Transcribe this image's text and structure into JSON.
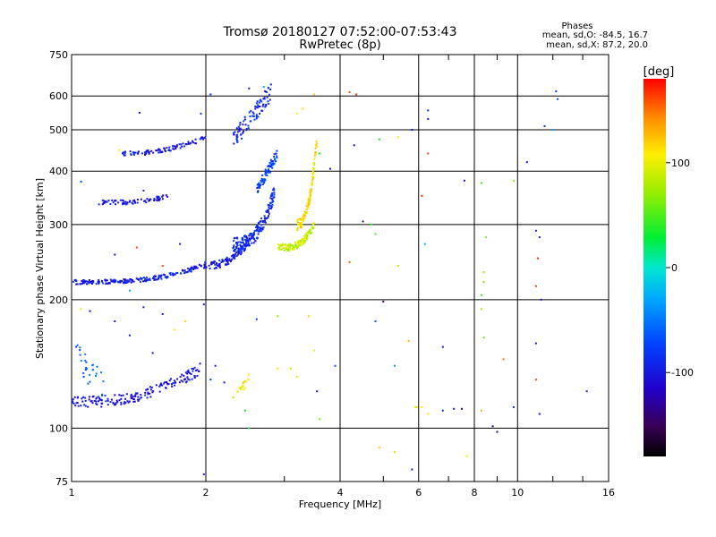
{
  "chart_data": {
    "type": "scatter",
    "title": "Tromsø 20180127 07:52:00-07:53:43",
    "subtitle": "RwPretec (8p)",
    "xlabel": "Frequency [MHz]",
    "ylabel": "Stationary phase Virtual Height [km]",
    "xscale": "log",
    "yscale": "log",
    "xlim": [
      1,
      16
    ],
    "ylim": [
      75,
      750
    ],
    "x_ticks": [
      1,
      2,
      4,
      6,
      8,
      10,
      16
    ],
    "x_tick_labels": [
      "1",
      "2",
      "4",
      "6",
      "8",
      "10",
      "16"
    ],
    "x_minor_ticks": [
      3,
      5,
      7,
      9,
      12,
      14
    ],
    "y_ticks": [
      75,
      100,
      200,
      300,
      400,
      500,
      600,
      750
    ],
    "y_tick_labels": [
      "75",
      "100",
      "200",
      "300",
      "400",
      "500",
      "600",
      "750"
    ],
    "grid": true,
    "phase_info": {
      "header": "Phases",
      "line1": "mean, sd,O: -84.5, 16.7",
      "line2": "mean, sd,X:  87.2, 20.0"
    },
    "colorbar": {
      "label": "[deg]",
      "range": [
        -180,
        180
      ],
      "ticks": [
        100,
        0,
        -100
      ],
      "tick_labels": [
        "100",
        "0",
        "-100"
      ],
      "colormap": "rainbow (black-purple-blue-cyan-green-yellow-orange-red)"
    },
    "series": [
      {
        "f0": 1.0,
        "f1": 1.95,
        "h0": 220,
        "h1": 240,
        "phase": -95,
        "n": 190,
        "curve": 1.1,
        "jitter": 0.012
      },
      {
        "f0": 1.0,
        "f1": 1.95,
        "h0": 115,
        "h1": 138,
        "phase": -105,
        "n": 170,
        "curve": 0.7,
        "jitter": 0.03
      },
      {
        "f0": 1.02,
        "f1": 1.2,
        "h0": 150,
        "h1": 120,
        "phase": -60,
        "n": 30,
        "curve": 0,
        "jitter": 0.08
      },
      {
        "f0": 1.15,
        "f1": 1.65,
        "h0": 338,
        "h1": 352,
        "phase": -100,
        "n": 70,
        "curve": 1.5,
        "jitter": 0.012
      },
      {
        "f0": 1.3,
        "f1": 2.0,
        "h0": 440,
        "h1": 480,
        "phase": -100,
        "n": 90,
        "curve": 0.6,
        "jitter": 0.012
      },
      {
        "f0": 1.95,
        "f1": 2.5,
        "h0": 240,
        "h1": 272,
        "phase": -100,
        "n": 90,
        "curve": 0.8,
        "jitter": 0.02
      },
      {
        "f0": 2.3,
        "f1": 2.85,
        "h0": 270,
        "h1": 360,
        "phase": -90,
        "n": 180,
        "curve": 0.9,
        "jitter": 0.04
      },
      {
        "f0": 2.6,
        "f1": 2.9,
        "h0": 360,
        "h1": 440,
        "phase": -75,
        "n": 80,
        "curve": 0,
        "jitter": 0.03
      },
      {
        "f0": 2.3,
        "f1": 2.8,
        "h0": 470,
        "h1": 615,
        "phase": -90,
        "n": 90,
        "curve": 0,
        "jitter": 0.05
      },
      {
        "f0": 2.9,
        "f1": 3.5,
        "h0": 265,
        "h1": 300,
        "phase": 85,
        "n": 120,
        "curve": 1.2,
        "jitter": 0.02
      },
      {
        "f0": 3.2,
        "f1": 3.55,
        "h0": 300,
        "h1": 480,
        "phase": 110,
        "n": 110,
        "curve": 0.8,
        "jitter": 0.03
      },
      {
        "f0": 2.3,
        "f1": 2.5,
        "h0": 118,
        "h1": 130,
        "phase": 105,
        "n": 16,
        "curve": 0,
        "jitter": 0.03
      }
    ],
    "scatter_points": [
      {
        "x": 3.2,
        "y": 545,
        "phase": 110
      },
      {
        "x": 3.3,
        "y": 560,
        "phase": 115
      },
      {
        "x": 3.5,
        "y": 605,
        "phase": 120
      },
      {
        "x": 4.2,
        "y": 612,
        "phase": 160
      },
      {
        "x": 4.35,
        "y": 605,
        "phase": 170
      },
      {
        "x": 4.3,
        "y": 460,
        "phase": -110
      },
      {
        "x": 4.9,
        "y": 475,
        "phase": 30
      },
      {
        "x": 5.4,
        "y": 480,
        "phase": 110
      },
      {
        "x": 5.8,
        "y": 500,
        "phase": -100
      },
      {
        "x": 6.3,
        "y": 555,
        "phase": -90
      },
      {
        "x": 6.3,
        "y": 530,
        "phase": -110
      },
      {
        "x": 6.3,
        "y": 440,
        "phase": 160
      },
      {
        "x": 7.6,
        "y": 380,
        "phase": -110
      },
      {
        "x": 8.3,
        "y": 375,
        "phase": 50
      },
      {
        "x": 9.8,
        "y": 380,
        "phase": 70
      },
      {
        "x": 12.2,
        "y": 615,
        "phase": -80
      },
      {
        "x": 12.3,
        "y": 590,
        "phase": -70
      },
      {
        "x": 11.5,
        "y": 510,
        "phase": -85
      },
      {
        "x": 12.0,
        "y": 500,
        "phase": -30
      },
      {
        "x": 10.5,
        "y": 420,
        "phase": -100
      },
      {
        "x": 4.7,
        "y": 300,
        "phase": 40
      },
      {
        "x": 4.8,
        "y": 285,
        "phase": 50
      },
      {
        "x": 5.4,
        "y": 240,
        "phase": 90
      },
      {
        "x": 4.2,
        "y": 245,
        "phase": 155
      },
      {
        "x": 4.5,
        "y": 305,
        "phase": -150
      },
      {
        "x": 6.1,
        "y": 350,
        "phase": 170
      },
      {
        "x": 6.2,
        "y": 270,
        "phase": -30
      },
      {
        "x": 8.5,
        "y": 280,
        "phase": 60
      },
      {
        "x": 8.4,
        "y": 232,
        "phase": 70
      },
      {
        "x": 8.4,
        "y": 220,
        "phase": 60
      },
      {
        "x": 8.3,
        "y": 205,
        "phase": 40
      },
      {
        "x": 8.3,
        "y": 190,
        "phase": 80
      },
      {
        "x": 11.0,
        "y": 290,
        "phase": -90
      },
      {
        "x": 11.2,
        "y": 280,
        "phase": -100
      },
      {
        "x": 11.1,
        "y": 250,
        "phase": 170
      },
      {
        "x": 11.0,
        "y": 215,
        "phase": 165
      },
      {
        "x": 11.3,
        "y": 200,
        "phase": -110
      },
      {
        "x": 5.0,
        "y": 198,
        "phase": -140
      },
      {
        "x": 4.8,
        "y": 178,
        "phase": -60
      },
      {
        "x": 5.7,
        "y": 160,
        "phase": 130
      },
      {
        "x": 6.8,
        "y": 155,
        "phase": -100
      },
      {
        "x": 8.4,
        "y": 163,
        "phase": 60
      },
      {
        "x": 9.3,
        "y": 145,
        "phase": 150
      },
      {
        "x": 11.0,
        "y": 158,
        "phase": -100
      },
      {
        "x": 11.0,
        "y": 130,
        "phase": 160
      },
      {
        "x": 3.9,
        "y": 140,
        "phase": -70
      },
      {
        "x": 5.3,
        "y": 140,
        "phase": -40
      },
      {
        "x": 3.5,
        "y": 152,
        "phase": 100
      },
      {
        "x": 3.2,
        "y": 132,
        "phase": 115
      },
      {
        "x": 5.9,
        "y": 112,
        "phase": 100
      },
      {
        "x": 5.95,
        "y": 112,
        "phase": 90
      },
      {
        "x": 6.1,
        "y": 112,
        "phase": 110
      },
      {
        "x": 6.8,
        "y": 110,
        "phase": -90
      },
      {
        "x": 7.2,
        "y": 111,
        "phase": -100
      },
      {
        "x": 7.5,
        "y": 111,
        "phase": -110
      },
      {
        "x": 8.3,
        "y": 110,
        "phase": 130
      },
      {
        "x": 9.0,
        "y": 98,
        "phase": -140
      },
      {
        "x": 8.8,
        "y": 101,
        "phase": -130
      },
      {
        "x": 9.8,
        "y": 112,
        "phase": -100
      },
      {
        "x": 11.2,
        "y": 108,
        "phase": -110
      },
      {
        "x": 14.3,
        "y": 122,
        "phase": -90
      },
      {
        "x": 6.3,
        "y": 108,
        "phase": 100
      },
      {
        "x": 4.9,
        "y": 90,
        "phase": 120
      },
      {
        "x": 5.8,
        "y": 80,
        "phase": -100
      },
      {
        "x": 5.3,
        "y": 88,
        "phase": 120
      },
      {
        "x": 7.7,
        "y": 86,
        "phase": 100
      },
      {
        "x": 2.5,
        "y": 100,
        "phase": 20
      },
      {
        "x": 2.45,
        "y": 110,
        "phase": 30
      },
      {
        "x": 2.2,
        "y": 128,
        "phase": -100
      },
      {
        "x": 2.1,
        "y": 140,
        "phase": -100
      },
      {
        "x": 2.05,
        "y": 130,
        "phase": -80
      },
      {
        "x": 1.98,
        "y": 78,
        "phase": -100
      },
      {
        "x": 1.98,
        "y": 195,
        "phase": -100
      },
      {
        "x": 2.6,
        "y": 180,
        "phase": -80
      },
      {
        "x": 2.9,
        "y": 183,
        "phase": 70
      },
      {
        "x": 3.4,
        "y": 183,
        "phase": 120
      },
      {
        "x": 2.9,
        "y": 138,
        "phase": 110
      },
      {
        "x": 3.1,
        "y": 138,
        "phase": 90
      },
      {
        "x": 3.6,
        "y": 105,
        "phase": 60
      },
      {
        "x": 3.55,
        "y": 122,
        "phase": -100
      },
      {
        "x": 1.8,
        "y": 178,
        "phase": 120
      },
      {
        "x": 1.7,
        "y": 170,
        "phase": 110
      },
      {
        "x": 1.6,
        "y": 185,
        "phase": -100
      },
      {
        "x": 1.45,
        "y": 192,
        "phase": -90
      },
      {
        "x": 1.25,
        "y": 178,
        "phase": -100
      },
      {
        "x": 1.1,
        "y": 188,
        "phase": -110
      },
      {
        "x": 1.05,
        "y": 190,
        "phase": 100
      },
      {
        "x": 1.35,
        "y": 165,
        "phase": -100
      },
      {
        "x": 1.52,
        "y": 150,
        "phase": -110
      },
      {
        "x": 1.6,
        "y": 240,
        "phase": 160
      },
      {
        "x": 1.75,
        "y": 270,
        "phase": -100
      },
      {
        "x": 1.4,
        "y": 265,
        "phase": 160
      },
      {
        "x": 1.25,
        "y": 255,
        "phase": -110
      },
      {
        "x": 1.35,
        "y": 210,
        "phase": -30
      },
      {
        "x": 1.45,
        "y": 360,
        "phase": -90
      },
      {
        "x": 1.0,
        "y": 380,
        "phase": -60
      },
      {
        "x": 1.05,
        "y": 378,
        "phase": -70
      },
      {
        "x": 1.28,
        "y": 448,
        "phase": 110
      },
      {
        "x": 1.42,
        "y": 548,
        "phase": -100
      },
      {
        "x": 1.95,
        "y": 545,
        "phase": -90
      },
      {
        "x": 2.05,
        "y": 605,
        "phase": -80
      },
      {
        "x": 2.5,
        "y": 625,
        "phase": -100
      },
      {
        "x": 2.7,
        "y": 630,
        "phase": -20
      },
      {
        "x": 3.8,
        "y": 405,
        "phase": -120
      },
      {
        "x": 3.6,
        "y": 440,
        "phase": 30
      }
    ]
  }
}
